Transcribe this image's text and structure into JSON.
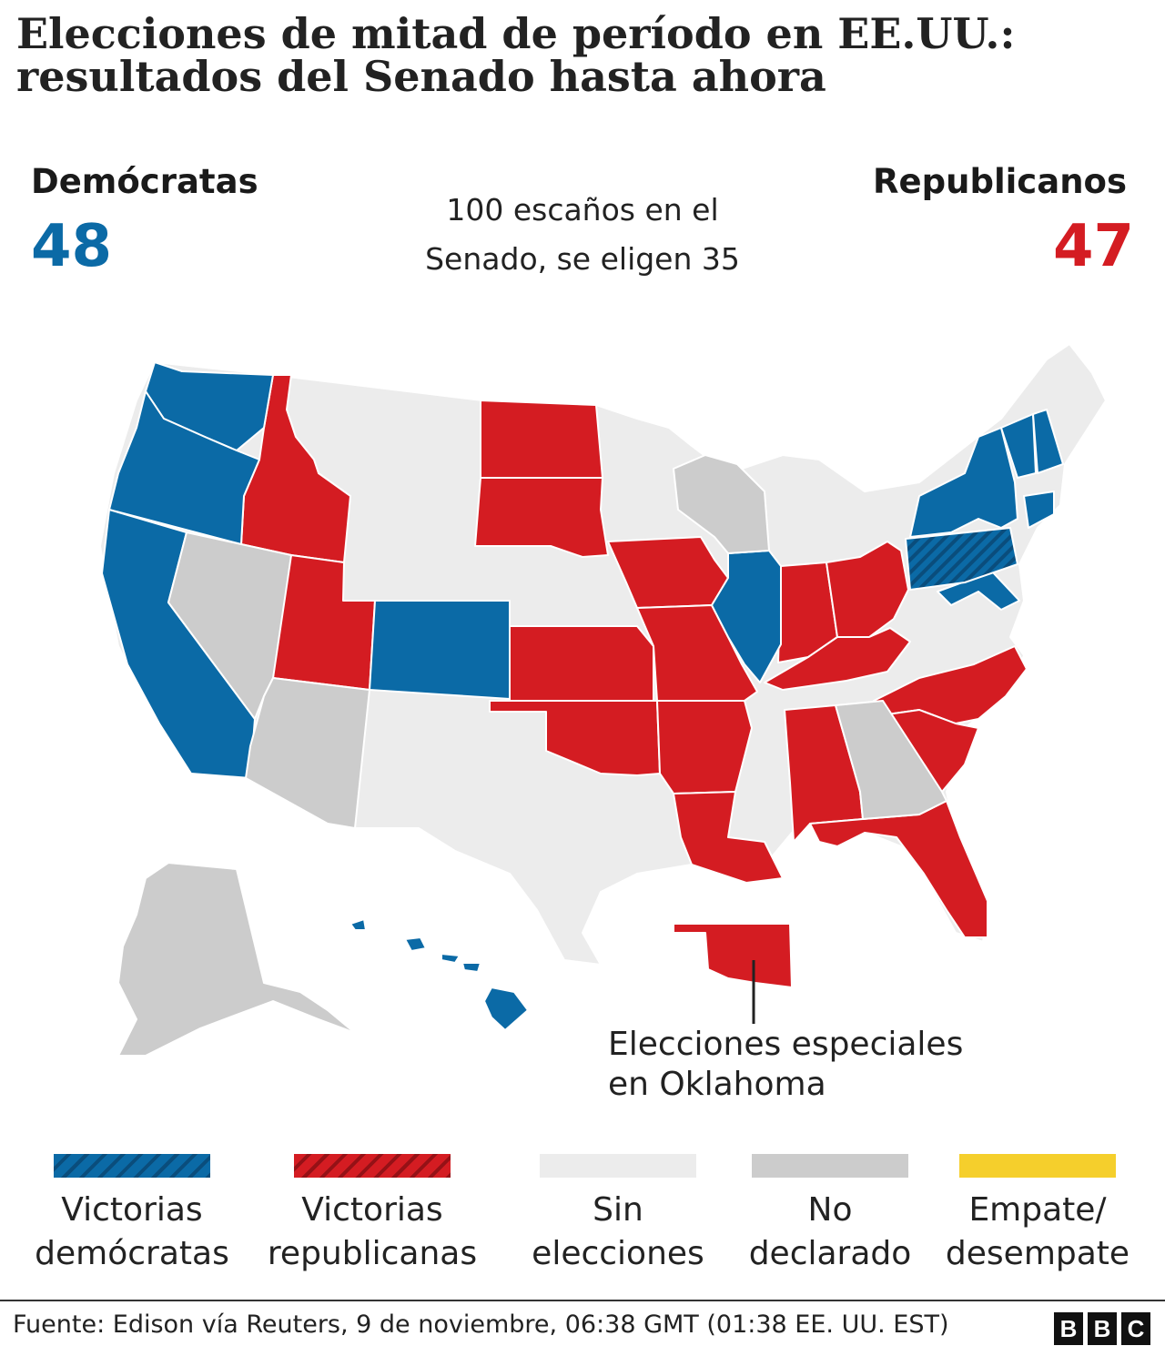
{
  "title": {
    "line1": "Elecciones de mitad de período en EE.UU.:",
    "line2": "resultados del Senado hasta ahora"
  },
  "democrats": {
    "label": "Demócratas",
    "seats": "48",
    "color": "#0b6aa6"
  },
  "republicans": {
    "label": "Republicanos",
    "seats": "47",
    "color": "#d41c22"
  },
  "senate_note": {
    "line1": "100 escaños en el",
    "line2": "Senado, se eligen 35"
  },
  "map_colors": {
    "dem": "#0b6aa6",
    "rep": "#d41c22",
    "no_election": "#ececec",
    "undeclared": "#cccccc",
    "tie": "#f5cf2c"
  },
  "map_states": {
    "dem": [
      "Washington",
      "Oregon",
      "California",
      "Colorado",
      "Illinois",
      "New York",
      "Vermont",
      "New Hampshire",
      "Connecticut",
      "Maryland",
      "Pennsylvania",
      "Hawaii"
    ],
    "rep": [
      "Idaho",
      "Utah",
      "North Dakota",
      "South Dakota",
      "Kansas",
      "Oklahoma",
      "Iowa",
      "Missouri",
      "Arkansas",
      "Louisiana",
      "Indiana",
      "Ohio",
      "Kentucky",
      "Alabama",
      "Florida",
      "North Carolina",
      "South Carolina"
    ],
    "undeclared": [
      "Nevada",
      "Arizona",
      "Wisconsin",
      "Georgia",
      "Alaska"
    ]
  },
  "callout": {
    "line1": "Elecciones especiales",
    "line2": "en Oklahoma"
  },
  "legend": [
    {
      "line1": "Victorias",
      "line2": "demócratas",
      "color": "#0b6aa6",
      "hatched": true
    },
    {
      "line1": "Victorias",
      "line2": "republicanas",
      "color": "#d41c22",
      "hatched": true
    },
    {
      "line1": "Sin",
      "line2": "elecciones",
      "color": "#ececec",
      "hatched": false
    },
    {
      "line1": "No",
      "line2": "declarado",
      "color": "#cccccc",
      "hatched": false
    },
    {
      "line1": "Empate/",
      "line2": "desempate",
      "color": "#f5cf2c",
      "hatched": false
    }
  ],
  "source": "Fuente: Edison vía Reuters, 9 de noviembre, 06:38 GMT (01:38 EE. UU. EST)",
  "logo": [
    "B",
    "B",
    "C"
  ]
}
